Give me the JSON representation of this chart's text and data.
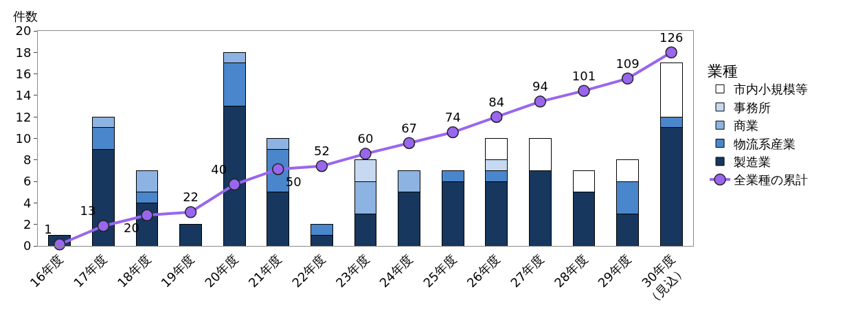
{
  "chart_data": {
    "type": "bar",
    "stacked": true,
    "ylabel": "件数",
    "legend_title": "業種",
    "legend": "right",
    "categories": [
      "16年度",
      "17年度",
      "18年度",
      "19年度",
      "20年度",
      "21年度",
      "22年度",
      "23年度",
      "24年度",
      "25年度",
      "26年度",
      "27年度",
      "28年度",
      "29年度",
      "30年度\n（見込）"
    ],
    "ylim": [
      0,
      20
    ],
    "yticks": [
      0,
      2,
      4,
      6,
      8,
      10,
      12,
      14,
      16,
      18,
      20
    ],
    "y2lim": [
      0,
      140
    ],
    "series": [
      {
        "name": "製造業",
        "color": "#17375e",
        "values": [
          1,
          9,
          4,
          2,
          13,
          5,
          1,
          3,
          5,
          6,
          6,
          7,
          5,
          3,
          11
        ]
      },
      {
        "name": "物流系産業",
        "color": "#4a86cc",
        "values": [
          0,
          2,
          1,
          0,
          4,
          4,
          1,
          0,
          0,
          1,
          1,
          0,
          0,
          3,
          1
        ]
      },
      {
        "name": "商業",
        "color": "#8db3e2",
        "values": [
          0,
          1,
          2,
          0,
          1,
          1,
          0,
          3,
          2,
          0,
          0,
          0,
          0,
          0,
          0
        ]
      },
      {
        "name": "事務所",
        "color": "#c6d9f1",
        "values": [
          0,
          0,
          0,
          0,
          0,
          0,
          0,
          2,
          0,
          0,
          1,
          0,
          0,
          0,
          0
        ]
      },
      {
        "name": "市内小規模等",
        "color": "#ffffff",
        "values": [
          0,
          0,
          0,
          0,
          0,
          0,
          0,
          0,
          0,
          0,
          2,
          3,
          2,
          2,
          5
        ]
      },
      {
        "name": "全業種の累計",
        "type": "line",
        "axis": "y2",
        "color": "#9966ee",
        "marker": "circle",
        "data_labels": true,
        "values": [
          1,
          13,
          20,
          22,
          40,
          50,
          52,
          60,
          67,
          74,
          84,
          94,
          101,
          109,
          126
        ]
      }
    ]
  }
}
